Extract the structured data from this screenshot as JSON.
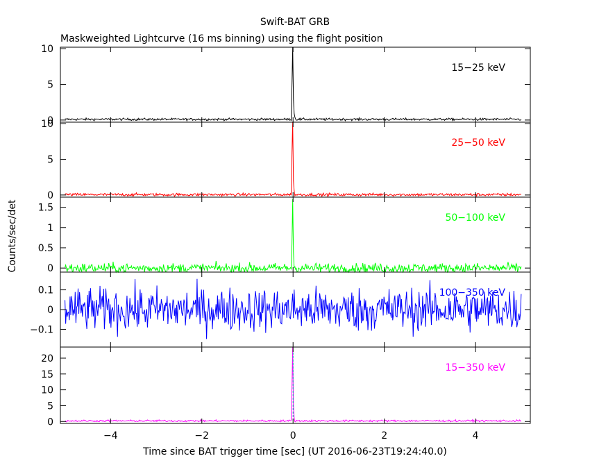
{
  "header": {
    "title": "Swift-BAT GRB",
    "subtitle": "Maskweighted Lightcurve (16 ms binning) using the flight position"
  },
  "chart_data": {
    "type": "line",
    "title": "Swift-BAT GRB",
    "subtitle": "Maskweighted Lightcurve (16 ms binning) using the flight position",
    "xlabel": "Time since BAT trigger time [sec] (UT 2016-06-23T19:24:40.0)",
    "ylabel": "Counts/sec/det",
    "xlim": [
      -5.1,
      5.2
    ],
    "x_ticks": [
      -4,
      -2,
      0,
      2,
      4
    ],
    "x_tick_labels": [
      "−4",
      "−2",
      "0",
      "2",
      "4"
    ],
    "grid": false,
    "panels": [
      {
        "band": "15−25 keV",
        "color": "#000000",
        "ylim": [
          -0.3,
          10.2
        ],
        "y_ticks": [
          0,
          5,
          10
        ],
        "y_tick_labels": [
          "0",
          "5",
          "10"
        ],
        "baseline": 0.1,
        "noise_amp": 0.08,
        "peak": [
          {
            "x": -0.016,
            "y": 5.0
          },
          {
            "x": 0.0,
            "y": 10.2
          },
          {
            "x": 0.016,
            "y": 3.0
          },
          {
            "x": 0.032,
            "y": 0.9
          },
          {
            "x": 0.048,
            "y": 0.4
          }
        ]
      },
      {
        "band": "25−50 keV",
        "color": "#ff0000",
        "ylim": [
          -0.3,
          10.2
        ],
        "y_ticks": [
          0,
          5,
          10
        ],
        "y_tick_labels": [
          "0",
          "5",
          "10"
        ],
        "baseline": 0.05,
        "noise_amp": 0.1,
        "peak": [
          {
            "x": -0.016,
            "y": 6.0
          },
          {
            "x": 0.0,
            "y": 10.2
          },
          {
            "x": 0.016,
            "y": 2.0
          },
          {
            "x": 0.032,
            "y": 0.6
          }
        ]
      },
      {
        "band": "50−100 keV",
        "color": "#00ff00",
        "ylim": [
          -0.1,
          1.75
        ],
        "y_ticks": [
          0,
          0.5,
          1,
          1.5
        ],
        "y_tick_labels": [
          "0",
          "0.5",
          "1",
          "1.5"
        ],
        "baseline": 0.0,
        "noise_amp": 0.06,
        "peak": [
          {
            "x": -0.016,
            "y": 0.6
          },
          {
            "x": 0.0,
            "y": 1.7
          },
          {
            "x": 0.016,
            "y": 0.4
          }
        ]
      },
      {
        "band": "100−350 keV",
        "color": "#0000ff",
        "ylim": [
          -0.19,
          0.19
        ],
        "y_ticks": [
          -0.1,
          0,
          0.1
        ],
        "y_tick_labels": [
          "−0.1",
          "0",
          "0.1"
        ],
        "baseline": 0.0,
        "noise_amp": 0.055,
        "peak": []
      },
      {
        "band": "15−350 keV",
        "color": "#ff00ff",
        "ylim": [
          -0.6,
          23.5
        ],
        "y_ticks": [
          0,
          5,
          10,
          15,
          20
        ],
        "y_tick_labels": [
          "0",
          "5",
          "10",
          "15",
          "20"
        ],
        "baseline": 0.2,
        "noise_amp": 0.15,
        "peak": [
          {
            "x": -0.016,
            "y": 11.0
          },
          {
            "x": 0.0,
            "y": 23.5
          },
          {
            "x": 0.016,
            "y": 5.0
          },
          {
            "x": 0.032,
            "y": 1.2
          }
        ]
      }
    ]
  }
}
